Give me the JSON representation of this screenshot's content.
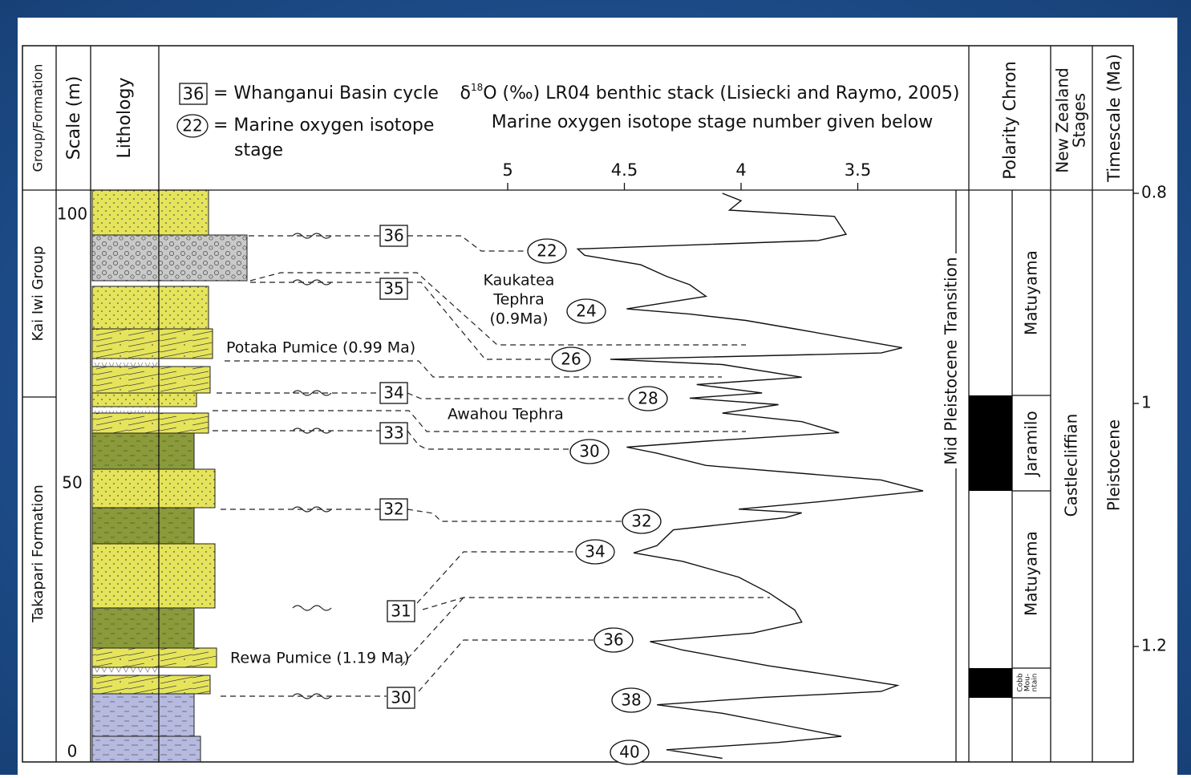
{
  "headers": {
    "group": "Group/Formation",
    "scale": "Scale (m)",
    "lithology": "Lithology",
    "polarity": "Polarity Chron",
    "stages": [
      "New Zealand",
      "Stages"
    ],
    "timescale": "Timescale (Ma)"
  },
  "legend": {
    "cycle_example": "36",
    "cycle_text": "= Whanganui Basin cycle",
    "stage_example": "22",
    "stage_text": [
      "= Marine oxygen isotope",
      "stage"
    ]
  },
  "isotope_axis": {
    "title": [
      "δ",
      "18",
      "O (‰) LR04 benthic stack (Lisiecki and Raymo, 2005)"
    ],
    "subtitle": "Marine oxygen isotope stage number given below",
    "ticks": [
      5,
      4.5,
      4,
      3.5
    ]
  },
  "scale_ticks": [
    100,
    50,
    0
  ],
  "time_ticks": [
    0.8,
    1,
    1.2
  ],
  "groups": [
    "Kai Iwi Group",
    "Takapari Formation"
  ],
  "cycles": [
    "36",
    "35",
    "34",
    "33",
    "32",
    "31",
    "30"
  ],
  "isotope_stages": [
    "22",
    "24",
    "26",
    "28",
    "30",
    "32",
    "34",
    "36",
    "38",
    "40"
  ],
  "annotations": {
    "kaukatea": [
      "Kaukatea",
      "Tephra",
      "(0.9Ma)"
    ],
    "potaka": "Potaka Pumice (0.99 Ma)",
    "awahou": "Awahou  Tephra",
    "rewa": "Rewa Pumice (1.19 Ma)",
    "mpt": "Mid Pleistocene Transition"
  },
  "polarity": {
    "chrons": [
      "Matuyama",
      "Jaramilo",
      "Matuyama"
    ],
    "cobb": [
      "Cobb",
      "Mou-",
      "ntain"
    ]
  },
  "stage": "Castlecliffian",
  "epoch": "Pleistocene",
  "curve": {
    "age": [
      0.8,
      0.807,
      0.816,
      0.822,
      0.839,
      0.845,
      0.853,
      0.859,
      0.868,
      0.879,
      0.887,
      0.898,
      0.91,
      0.915,
      0.921,
      0.929,
      0.947,
      0.952,
      0.958,
      0.963,
      0.975,
      0.982,
      0.99,
      0.995,
      1.001,
      1.008,
      1.015,
      1.024,
      1.031,
      1.036,
      1.041,
      1.051,
      1.063,
      1.072,
      1.081,
      1.087,
      1.09,
      1.094,
      1.104,
      1.117,
      1.123,
      1.13,
      1.143,
      1.156,
      1.17,
      1.18,
      1.189,
      1.196,
      1.203,
      1.216,
      1.226,
      1.232,
      1.237,
      1.242,
      1.248,
      1.255,
      1.265,
      1.274,
      1.279,
      1.285,
      1.292
    ],
    "d18o": [
      4.08,
      4.0,
      4.05,
      3.6,
      3.55,
      3.67,
      4.7,
      4.67,
      4.43,
      4.32,
      4.22,
      4.15,
      4.49,
      4.22,
      3.98,
      3.77,
      3.31,
      3.4,
      4.56,
      4.08,
      3.74,
      4.19,
      3.91,
      4.22,
      3.84,
      4.08,
      3.74,
      3.58,
      4.15,
      4.49,
      4.36,
      4.15,
      3.4,
      3.22,
      3.67,
      4.01,
      3.74,
      3.81,
      4.29,
      4.36,
      4.46,
      4.25,
      4.01,
      3.88,
      3.77,
      3.74,
      3.95,
      4.39,
      4.25,
      3.88,
      3.53,
      3.33,
      3.4,
      3.91,
      4.36,
      4.08,
      3.81,
      3.57,
      3.84,
      4.32,
      4.08
    ]
  }
}
